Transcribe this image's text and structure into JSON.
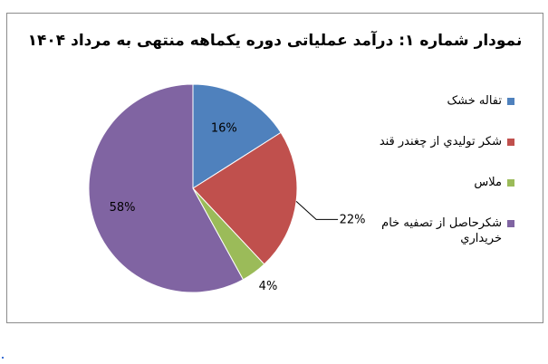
{
  "chart_data": {
    "type": "pie",
    "title": "نمودار شماره ۱: درآمد عملیاتی دوره یکماهه منتهی به مرداد ۱۴۰۴",
    "slices": [
      {
        "label": "تفاله خشک",
        "value": 16,
        "value_label": "16%",
        "color": "#4f81bd"
      },
      {
        "label": "شکر تولیدي از چغندر قند",
        "value": 22,
        "value_label": "22%",
        "color": "#c0504d"
      },
      {
        "label": "ملاس",
        "value": 4,
        "value_label": "4%",
        "color": "#9bbb59"
      },
      {
        "label": "شکرحاصل از تصفیه خام خریداري",
        "value": 58,
        "value_label": "58%",
        "color": "#8064a2"
      }
    ],
    "legend_position": "right"
  }
}
